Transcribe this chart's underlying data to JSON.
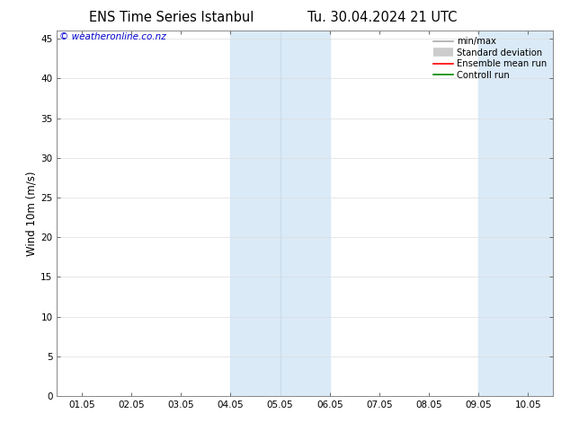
{
  "title_left": "ENS Time Series Istanbul",
  "title_right": "Tu. 30.04.2024 21 UTC",
  "ylabel": "Wind 10m (m/s)",
  "xlabel_ticks": [
    "01.05",
    "02.05",
    "03.05",
    "04.05",
    "05.05",
    "06.05",
    "07.05",
    "08.05",
    "09.05",
    "10.05"
  ],
  "xlim": [
    -0.5,
    9.5
  ],
  "ylim": [
    0,
    46
  ],
  "yticks": [
    0,
    5,
    10,
    15,
    20,
    25,
    30,
    35,
    40,
    45
  ],
  "shaded_regions": [
    {
      "xstart": 3.0,
      "xend": 4.0,
      "color": "#daeaf7"
    },
    {
      "xstart": 4.0,
      "xend": 5.0,
      "color": "#daeaf7"
    },
    {
      "xstart": 8.0,
      "xend": 9.0,
      "color": "#daeaf7"
    }
  ],
  "shade_dividers": [
    4.0
  ],
  "background_color": "#ffffff",
  "watermark_text": "© weatheronline.co.nz",
  "watermark_color": "#0000cc",
  "legend_entries": [
    {
      "label": "min/max",
      "color": "#aaaaaa",
      "lw": 1.2
    },
    {
      "label": "Standard deviation",
      "color": "#cccccc",
      "lw": 7
    },
    {
      "label": "Ensemble mean run",
      "color": "#ff0000",
      "lw": 1.2
    },
    {
      "label": "Controll run",
      "color": "#008800",
      "lw": 1.2
    }
  ],
  "grid_color": "#dddddd",
  "tick_fontsize": 7.5,
  "label_fontsize": 8.5,
  "title_fontsize": 10.5
}
